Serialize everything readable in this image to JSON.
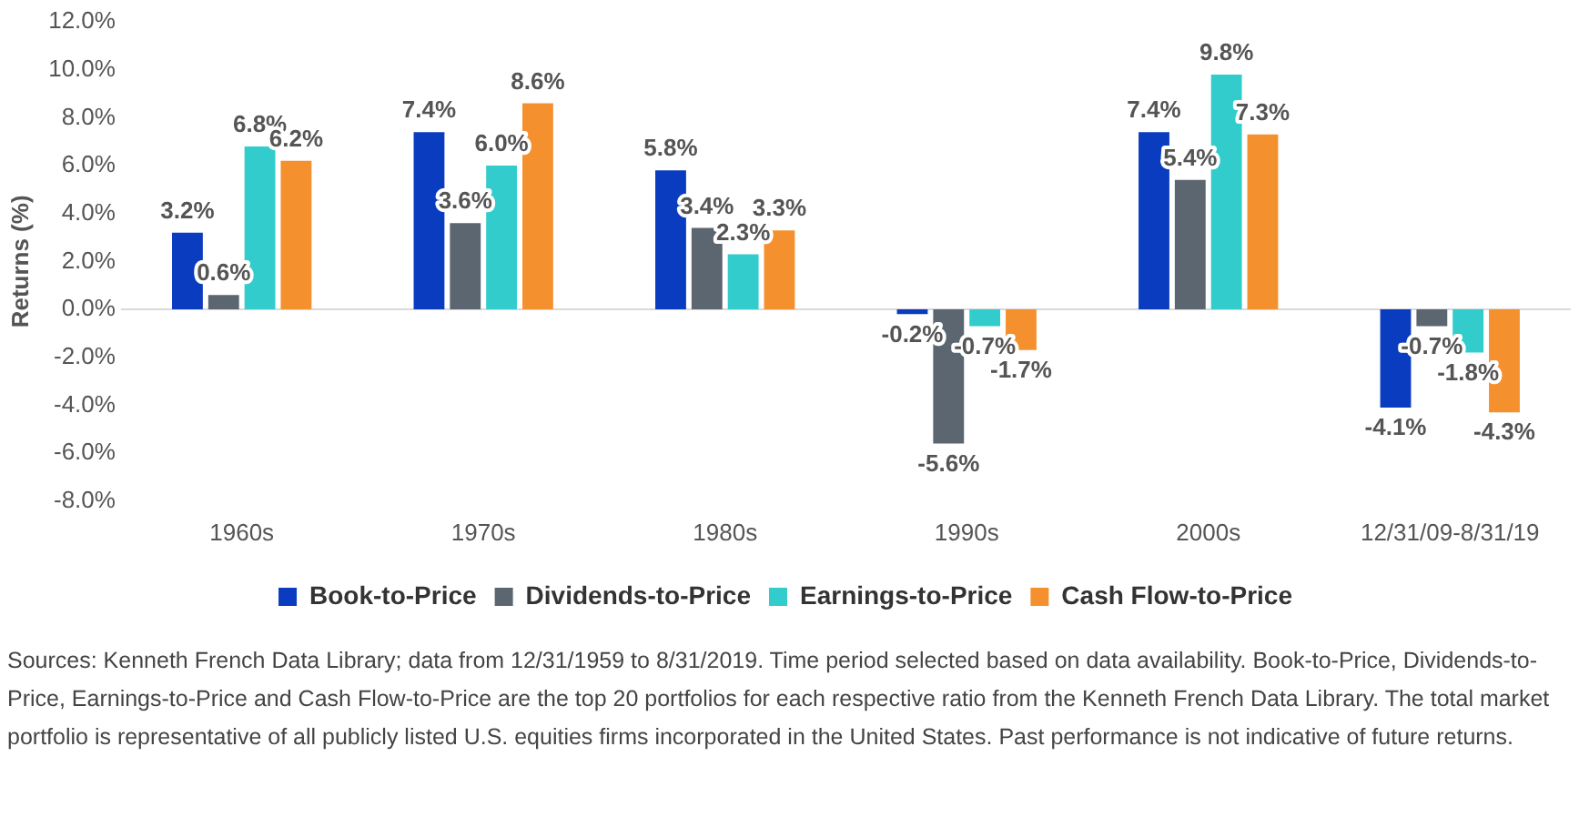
{
  "chart_data": {
    "type": "bar",
    "ylabel": "Returns (%)",
    "categories": [
      "1960s",
      "1970s",
      "1980s",
      "1990s",
      "2000s",
      "12/31/09-8/31/19"
    ],
    "series": [
      {
        "name": "Book-to-Price",
        "color": "#0a3cc0",
        "values": [
          3.2,
          7.4,
          5.8,
          -0.2,
          7.4,
          -4.1
        ],
        "value_labels": [
          "3.2%",
          "7.4%",
          "5.8%",
          "-0.2%",
          "7.4%",
          "-4.1%"
        ]
      },
      {
        "name": "Dividends-to-Price",
        "color": "#5b6670",
        "values": [
          0.6,
          3.6,
          3.4,
          -5.6,
          5.4,
          -0.7
        ],
        "value_labels": [
          "0.6%",
          "3.6%",
          "3.4%",
          "-5.6%",
          "5.4%",
          "-0.7%"
        ]
      },
      {
        "name": "Earnings-to-Price",
        "color": "#33cccc",
        "values": [
          6.8,
          6.0,
          2.3,
          -0.7,
          9.8,
          -1.8
        ],
        "value_labels": [
          "6.8%",
          "6.0%",
          "2.3%",
          "-0.7%",
          "9.8%",
          "-1.8%"
        ]
      },
      {
        "name": "Cash Flow-to-Price",
        "color": "#f5902e",
        "values": [
          6.2,
          8.6,
          3.3,
          -1.7,
          7.3,
          -4.3
        ],
        "value_labels": [
          "6.2%",
          "8.6%",
          "3.3%",
          "-1.7%",
          "7.3%",
          "-4.3%"
        ]
      }
    ],
    "ylim": [
      -8,
      12
    ],
    "yticks": [
      {
        "value": -8,
        "label": "-8.0%"
      },
      {
        "value": -6,
        "label": "-6.0%"
      },
      {
        "value": -4,
        "label": "-4.0%"
      },
      {
        "value": -2,
        "label": "-2.0%"
      },
      {
        "value": 0,
        "label": "0.0%"
      },
      {
        "value": 2,
        "label": "2.0%"
      },
      {
        "value": 4,
        "label": "4.0%"
      },
      {
        "value": 6,
        "label": "6.0%"
      },
      {
        "value": 8,
        "label": "8.0%"
      },
      {
        "value": 10,
        "label": "10.0%"
      },
      {
        "value": 12,
        "label": "12.0%"
      }
    ],
    "grid": false,
    "legend": "bottom",
    "ref_lines": [
      {
        "axis": "y",
        "value": 0,
        "color": "#d9d9d9"
      }
    ],
    "annotations": [
      "Sources: Kenneth French Data Library; data from 12/31/1959 to 8/31/2019. Time period selected based on data availability. Book-to-Price, Dividends-to-Price, Earnings-to-Price and Cash Flow-to-Price are the top 20 portfolios for each respective ratio from the Kenneth French Data Library. The total market portfolio is representative of all publicly listed U.S. equities firms incorporated in the United States. Past performance is not indicative of future returns."
    ]
  }
}
